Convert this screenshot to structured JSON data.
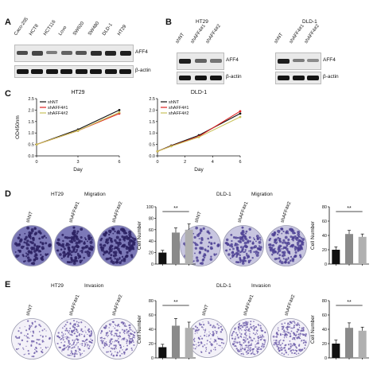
{
  "panels": {
    "A": "A",
    "B": "B",
    "C": "C",
    "D": "D",
    "E": "E"
  },
  "panelA": {
    "lanes": [
      "Caco-205",
      "HCT8",
      "HCT116",
      "Lovo",
      "SW620",
      "SW480",
      "DLD-1",
      "HT29"
    ],
    "protein_label": "AFF4",
    "actin_label": "β-actin",
    "aff4_intensity": [
      0.65,
      0.7,
      0.35,
      0.5,
      0.6,
      0.85,
      0.9,
      0.95
    ]
  },
  "panelB": {
    "left": {
      "title": "HT29",
      "lanes": [
        "shNT",
        "shAFF4#1",
        "shAFF4#2"
      ],
      "protein_label": "AFF4",
      "actin_label": "β-actin",
      "aff4_intensity": [
        0.95,
        0.5,
        0.4
      ]
    },
    "right": {
      "title": "DLD-1",
      "lanes": [
        "shNT",
        "shAFF4#1",
        "shAFF4#2"
      ],
      "protein_label": "AFF4",
      "actin_label": "β-actin",
      "aff4_intensity": [
        0.95,
        0.35,
        0.25
      ]
    }
  },
  "panelD": {
    "left_title": "HT29",
    "left_sub": "Migration",
    "right_title": "DLD-1",
    "right_sub": "Migration",
    "labels": [
      "shNT",
      "shAFF4#1",
      "shAFF4#2"
    ]
  },
  "panelE": {
    "left_title": "HT29",
    "left_sub": "Invasion",
    "right_title": "DLD-1",
    "right_sub": "Invasion",
    "labels": [
      "shNT",
      "shAFF4#1",
      "shAFF4#2"
    ]
  },
  "colors": {
    "shNT": "#111111",
    "shAFF4_1": "#e02020",
    "shAFF4_2": "#c9c25a",
    "bar1": "#111111",
    "bar2": "#8a8a8a",
    "bar3": "#b0b0b0",
    "stain": "#3a2f7a"
  },
  "chart_data": [
    {
      "type": "line",
      "title": "HT29",
      "xlabel": "Day",
      "ylabel": "OD450nm",
      "x": [
        0,
        3,
        6
      ],
      "xlim": [
        0,
        6
      ],
      "ylim": [
        0.0,
        2.5
      ],
      "xticks": [
        "0",
        "3",
        "6"
      ],
      "yticks": [
        "0.0",
        "0.5",
        "1.0",
        "1.5",
        "2.0",
        "2.5"
      ],
      "series": [
        {
          "name": "shNT",
          "values": [
            0.5,
            1.15,
            2.0
          ]
        },
        {
          "name": "shAFF4#1",
          "values": [
            0.5,
            1.1,
            1.85
          ]
        },
        {
          "name": "shAFF4#2",
          "values": [
            0.5,
            1.1,
            1.9
          ]
        }
      ],
      "legend": "top-left"
    },
    {
      "type": "line",
      "title": "DLD-1",
      "xlabel": "Day",
      "ylabel": "",
      "x": [
        0,
        1,
        3,
        6
      ],
      "xlim": [
        0,
        6
      ],
      "ylim": [
        0.0,
        2.5
      ],
      "xticks": [
        "0",
        "2",
        "4",
        "6"
      ],
      "yticks": [
        "0.0",
        "0.5",
        "1.0",
        "1.5",
        "2.0",
        "2.5"
      ],
      "series": [
        {
          "name": "shNT",
          "values": [
            0.2,
            0.45,
            0.9,
            1.85
          ]
        },
        {
          "name": "shAFF4#1",
          "values": [
            0.2,
            0.43,
            0.85,
            1.95
          ]
        },
        {
          "name": "shAFF4#2",
          "values": [
            0.2,
            0.42,
            0.82,
            1.7
          ]
        }
      ],
      "legend": "top-left"
    },
    {
      "type": "bar",
      "title": "",
      "ylabel": "Cell  Number",
      "categories": [
        "shNT",
        "shAFF4#1",
        "shAFF4#2"
      ],
      "values": [
        20,
        55,
        60
      ],
      "errors": [
        4,
        8,
        10
      ],
      "ylim": [
        0,
        100
      ],
      "yticks": [
        "0",
        "20",
        "40",
        "60",
        "80",
        "100"
      ],
      "annotation": "**"
    },
    {
      "type": "bar",
      "title": "",
      "ylabel": "Cell  Number",
      "categories": [
        "shNT",
        "shAFF4#1",
        "shAFF4#2"
      ],
      "values": [
        20,
        42,
        38
      ],
      "errors": [
        4,
        5,
        4
      ],
      "ylim": [
        0,
        80
      ],
      "yticks": [
        "0",
        "20",
        "40",
        "60",
        "80"
      ],
      "annotation": "**"
    },
    {
      "type": "bar",
      "title": "",
      "ylabel": "Cell  Number",
      "categories": [
        "shNT",
        "shAFF4#1",
        "shAFF4#2"
      ],
      "values": [
        15,
        45,
        42
      ],
      "errors": [
        4,
        10,
        8
      ],
      "ylim": [
        0,
        80
      ],
      "yticks": [
        "0",
        "20",
        "40",
        "60",
        "80"
      ],
      "annotation": "**"
    },
    {
      "type": "bar",
      "title": "",
      "ylabel": "Cell  Number",
      "categories": [
        "shNT",
        "shAFF4#1",
        "shAFF4#2"
      ],
      "values": [
        20,
        42,
        38
      ],
      "errors": [
        5,
        7,
        5
      ],
      "ylim": [
        0,
        80
      ],
      "yticks": [
        "0",
        "20",
        "40",
        "60",
        "80"
      ],
      "annotation": "**"
    }
  ]
}
